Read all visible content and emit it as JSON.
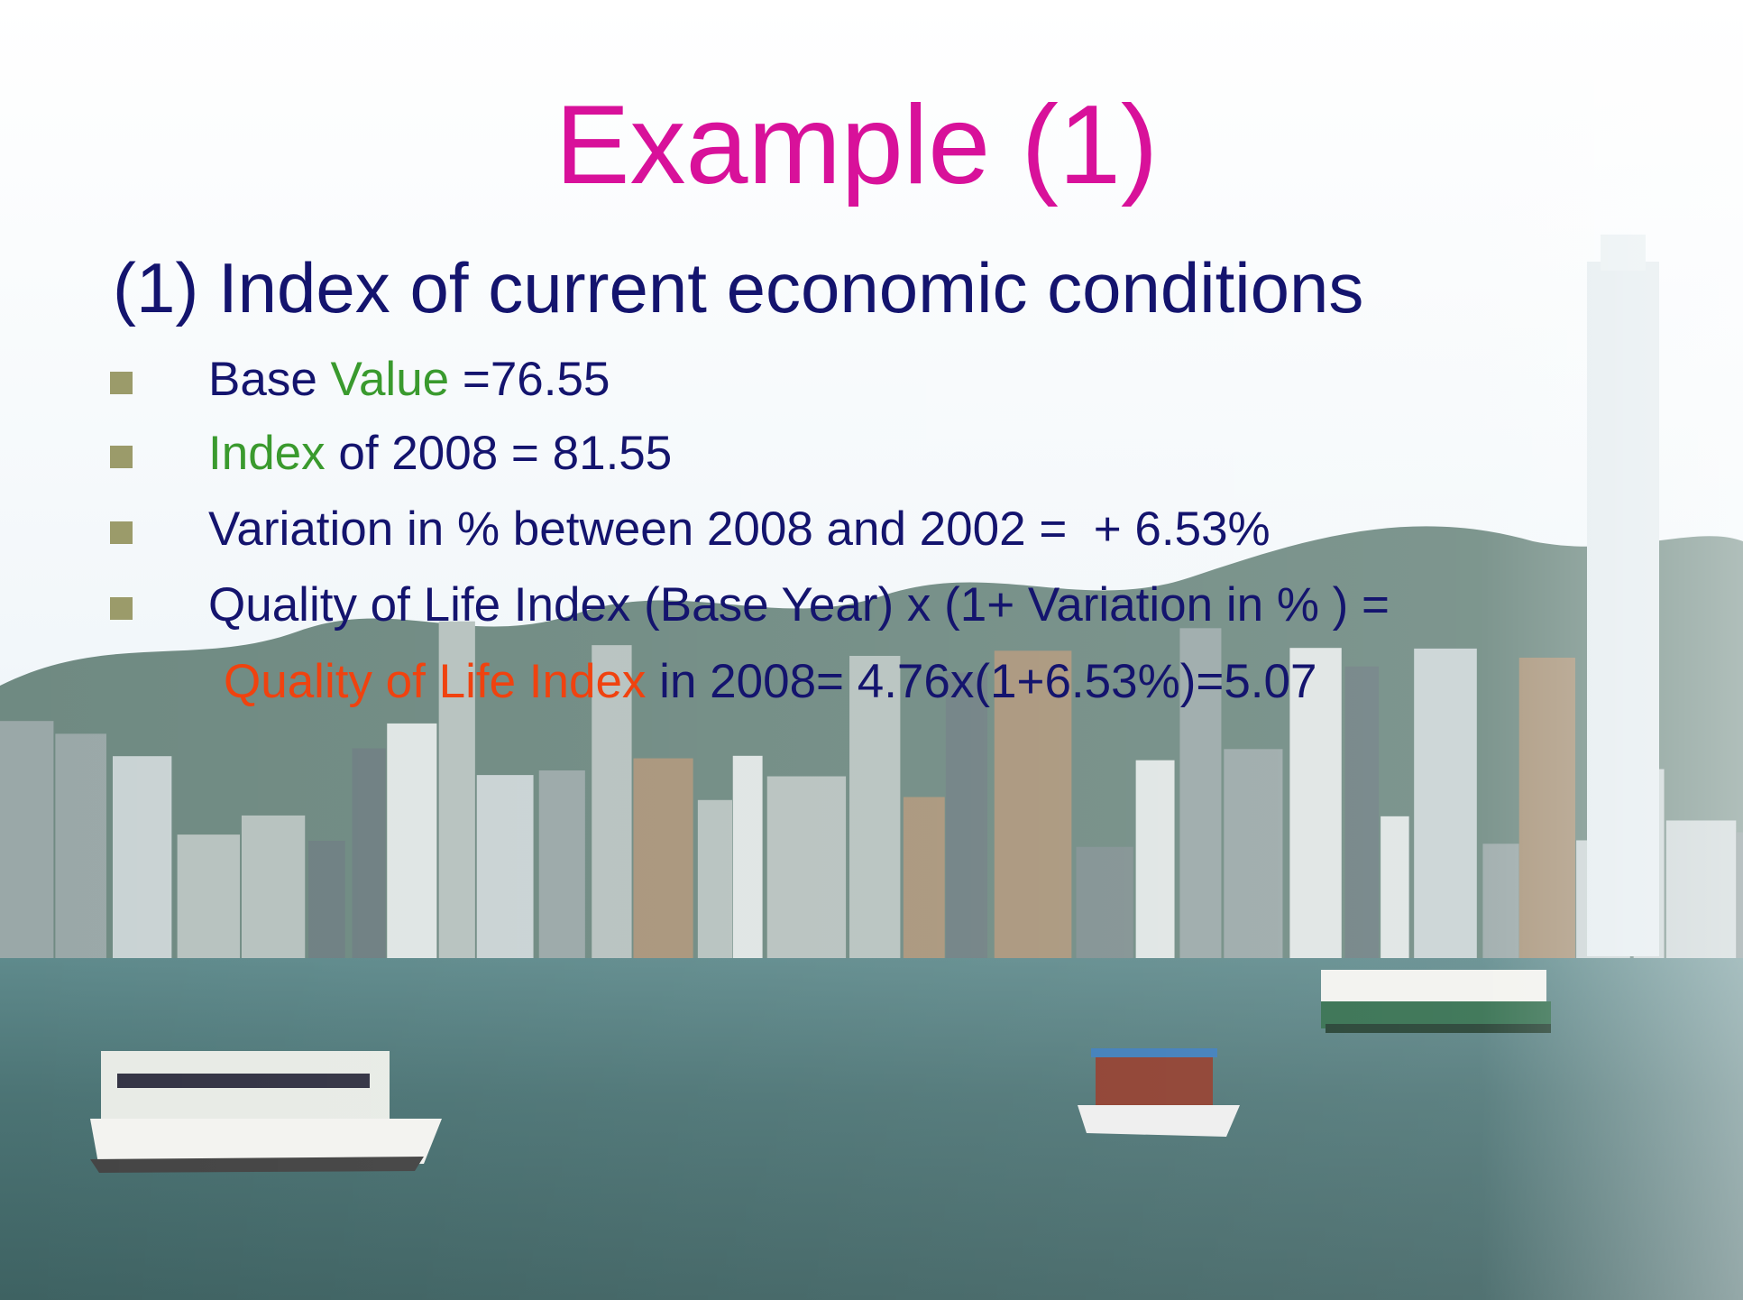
{
  "title": "Example (1)",
  "subtitle": "(1) Index of current economic conditions",
  "bullets": [
    [
      "Base ",
      "Value",
      " =76.55"
    ],
    [
      "Index",
      " of 2008 = 81.55"
    ],
    [
      "Variation in % between 2008 and 2002 =  + 6.53%"
    ],
    [
      "Quality of Life Index (Base Year) x (1+ Variation in % ) ="
    ]
  ],
  "result": [
    "Quality of Life Index",
    " in 2008= 4.76x(1+6.53%)=5.07"
  ]
}
